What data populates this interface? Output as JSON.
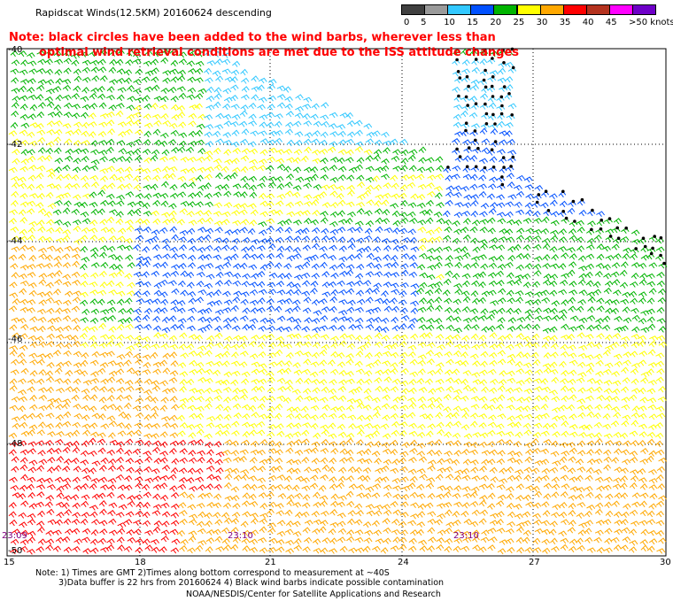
{
  "title": "Rapidscat Winds(12.5KM) 20160624 descending",
  "note_lines": [
    "Note: black circles have been added to the wind barbs, wherever less than",
    "optimal wind retrieval conditions are met due to the ISS attitude changes"
  ],
  "legend": {
    "labels": [
      "0",
      "5",
      "10",
      "15",
      "20",
      "25",
      "30",
      "35",
      "40",
      "45",
      ">50 knots"
    ],
    "colors": [
      "#404040",
      "#9a9a9a",
      "#32c8ff",
      "#0050ff",
      "#00b400",
      "#ffff00",
      "#ffa800",
      "#ff0000",
      "#b4321e",
      "#ff00ff",
      "#6e00c8"
    ]
  },
  "lat_labels": [
    "-40",
    "-42",
    "-44",
    "-46",
    "-48",
    "-50"
  ],
  "lon_labels": [
    "15",
    "18",
    "21",
    "24",
    "27",
    "30"
  ],
  "time_labels": [
    "23:09",
    "23:10",
    "23:10"
  ],
  "footer": {
    "line1": "Note: 1) Times are GMT 2)Times along bottom correspond to measurement at ~40S",
    "line2": "3)Data buffer is 22 hrs from 20160624 4) Black wind barbs indicate possible contamination",
    "credit": "NOAA/NESDIS/Center for Satellite Applications and Research"
  },
  "colors": {
    "note_red": "#ff0000",
    "time_purple": "#800080",
    "grid": "#000000"
  }
}
